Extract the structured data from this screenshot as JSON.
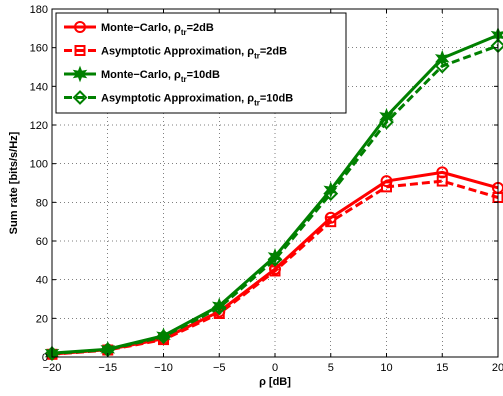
{
  "chart_data": {
    "type": "line",
    "xlabel": "ρ [dB]",
    "ylabel": "Sum rate [bits/s/Hz]",
    "xlim": [
      -20,
      20
    ],
    "ylim": [
      0,
      180
    ],
    "xticks": [
      -20,
      -15,
      -10,
      -5,
      0,
      5,
      10,
      15,
      20
    ],
    "yticks": [
      0,
      20,
      40,
      60,
      80,
      100,
      120,
      140,
      160,
      180
    ],
    "x": [
      -20,
      -15,
      -10,
      -5,
      0,
      5,
      10,
      15,
      20
    ],
    "grid": true,
    "legend_placement": "top-left",
    "series": [
      {
        "name": "Monte-Carlo, ρ_tr=2dB",
        "legend_main": "Monte−Carlo, ρ",
        "legend_sub": "tr",
        "legend_tail": "=2dB",
        "values": [
          1.5,
          3.8,
          9.5,
          23.5,
          45.5,
          72,
          91,
          95.5,
          87.5
        ],
        "color": "#ff0000",
        "dash": "solid",
        "marker": "circle"
      },
      {
        "name": "Asymptotic Approximation, ρ_tr=2dB",
        "legend_main": "Asymptotic Approximation, ρ",
        "legend_sub": "tr",
        "legend_tail": "=2dB",
        "values": [
          1.4,
          3.6,
          9,
          22.5,
          44.5,
          70,
          88,
          91,
          82.5
        ],
        "color": "#ff0000",
        "dash": "dashed",
        "marker": "square"
      },
      {
        "name": "Monte-Carlo, ρ_tr=10dB",
        "legend_main": "Monte−Carlo, ρ",
        "legend_sub": "tr",
        "legend_tail": "=10dB",
        "values": [
          2,
          4,
          11,
          26.5,
          52,
          86.5,
          124.5,
          154.5,
          166.5
        ],
        "color": "#008000",
        "dash": "solid",
        "marker": "hexagram"
      },
      {
        "name": "Asymptotic Approximation, ρ_tr=10dB",
        "legend_main": "Asymptotic Approximation, ρ",
        "legend_sub": "tr",
        "legend_tail": "=10dB",
        "values": [
          1.8,
          3.8,
          10.5,
          25.5,
          50.5,
          84.5,
          121.5,
          150.5,
          161
        ],
        "color": "#008000",
        "dash": "dashed",
        "marker": "diamond"
      }
    ]
  }
}
